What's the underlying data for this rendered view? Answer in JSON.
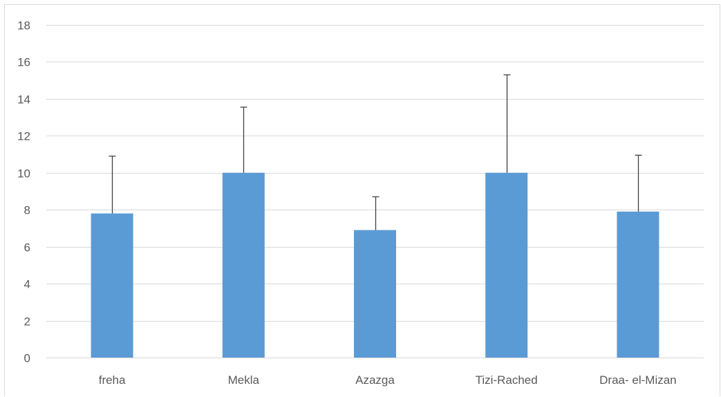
{
  "chart_data": {
    "type": "bar",
    "title": "",
    "xlabel": "",
    "ylabel": "",
    "categories": [
      "freha",
      "Mekla",
      "Azazga",
      "Tizi-Rached",
      "Draa- el-Mizan"
    ],
    "values": [
      7.8,
      10.0,
      6.9,
      10.0,
      7.9
    ],
    "error_bars": [
      3.1,
      3.55,
      1.8,
      5.3,
      3.05
    ],
    "ylim": [
      0,
      18
    ],
    "yticks": [
      0,
      2,
      4,
      6,
      8,
      10,
      12,
      14,
      16,
      18
    ],
    "grid": true,
    "legend": "none",
    "colors": {
      "bar": "#5b9bd5",
      "gridline": "#d9d9d9",
      "error_bar": "#404040",
      "tick_text": "#595959"
    }
  }
}
